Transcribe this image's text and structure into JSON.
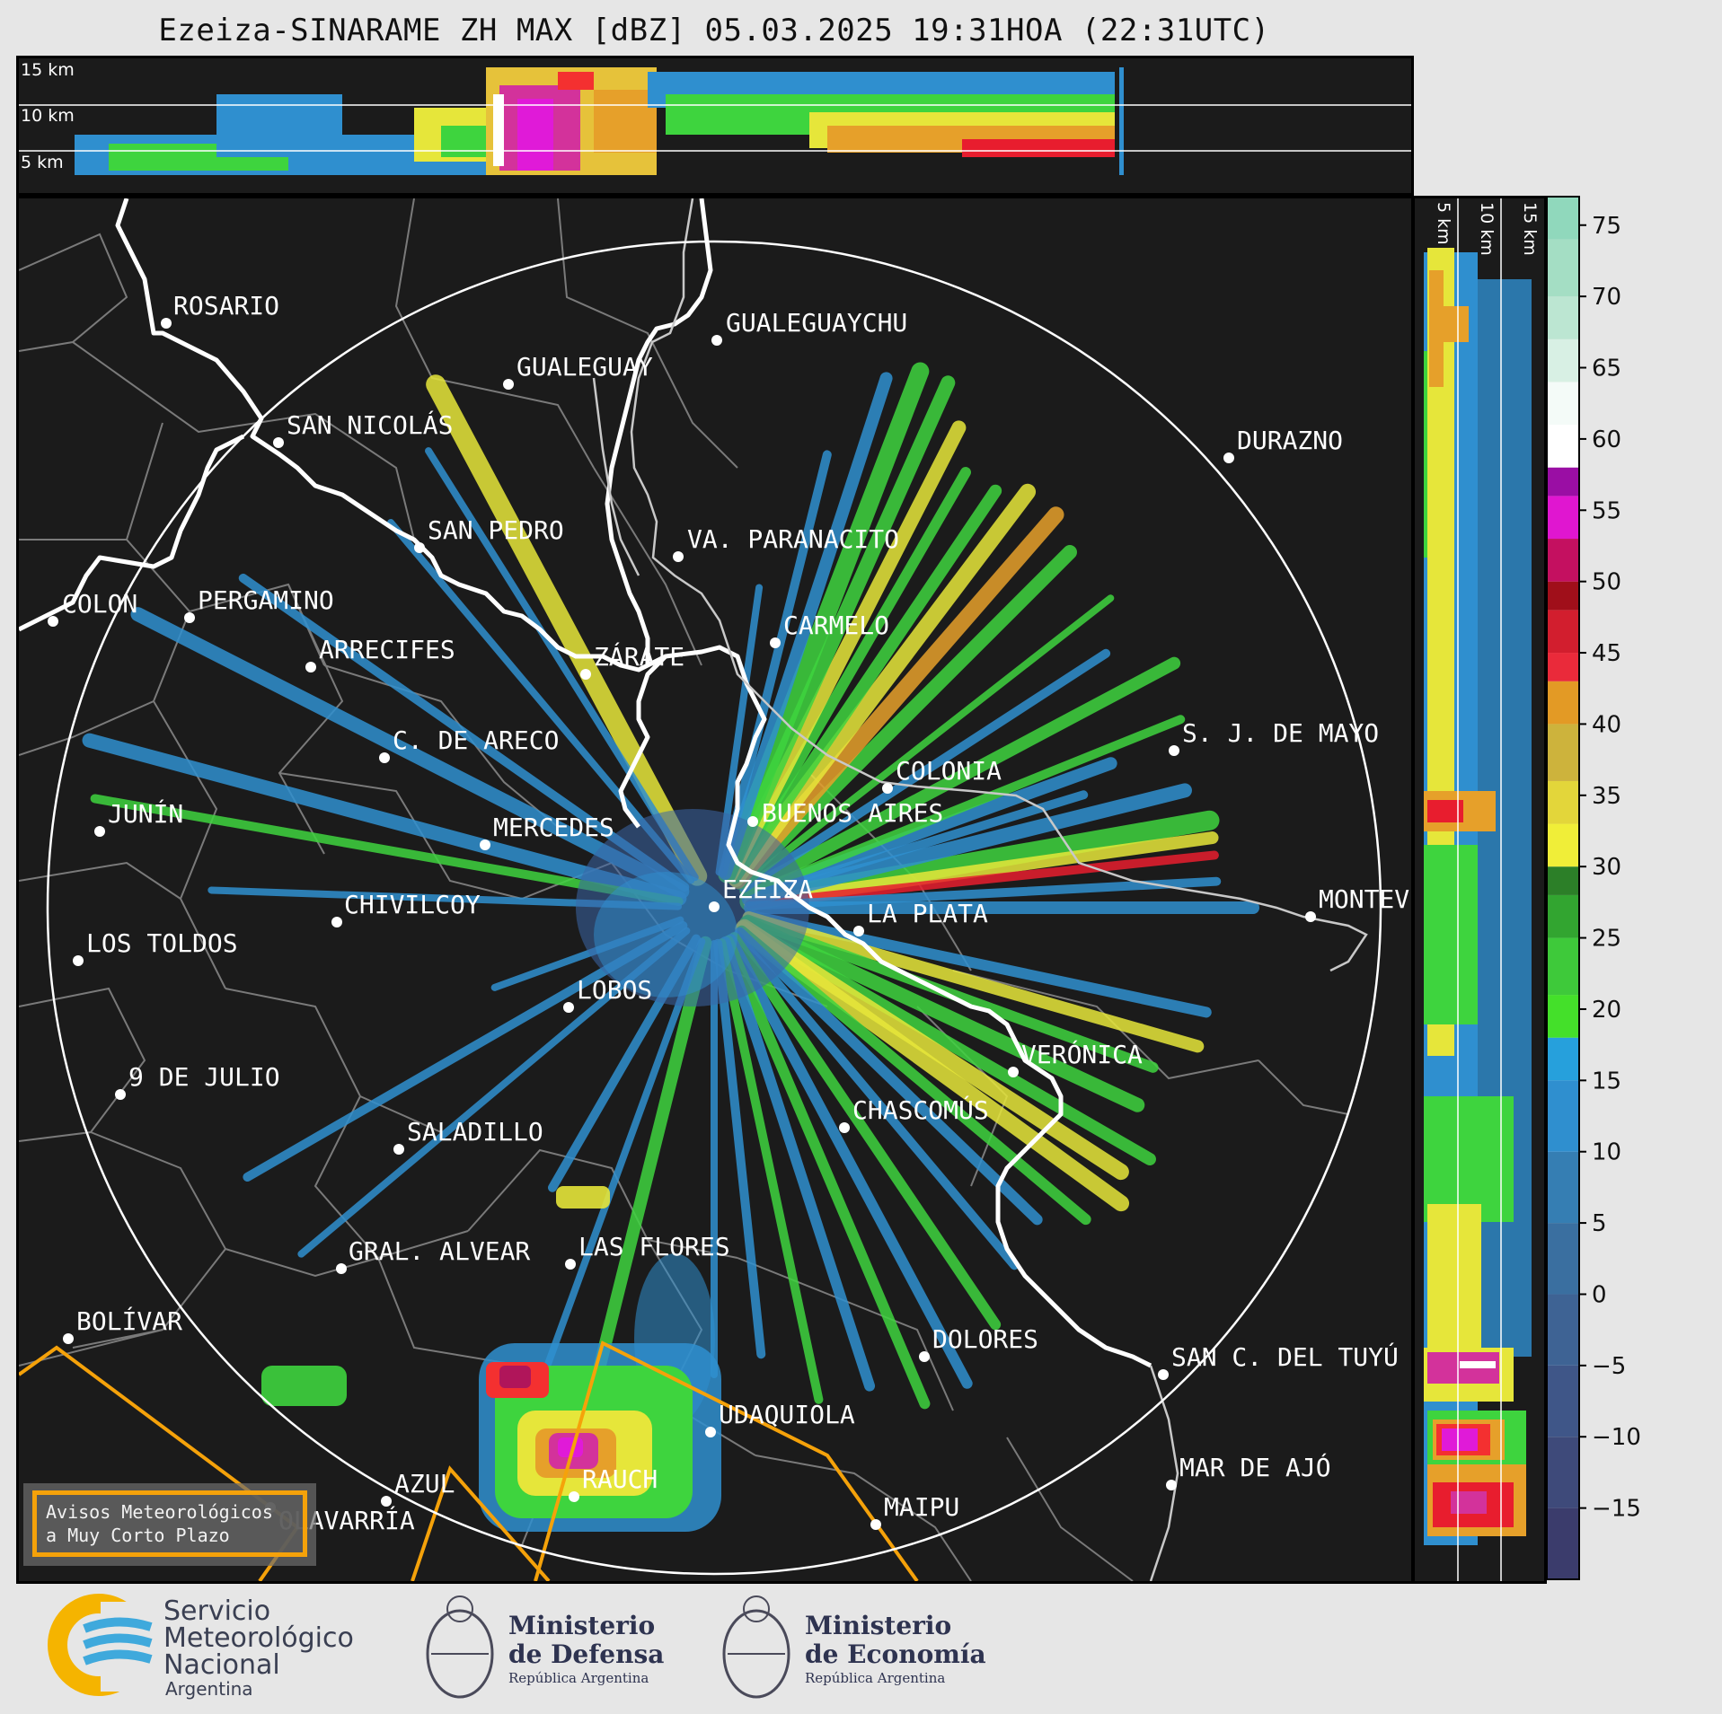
{
  "title": "Ezeiza-SINARAME ZH MAX [dBZ] 05.03.2025 19:31HOA (22:31UTC)",
  "top_panel": {
    "height_labels": [
      "15 km",
      "10 km",
      "5 km"
    ]
  },
  "side_panel": {
    "height_labels": [
      "5 km",
      "10 km",
      "15 km"
    ]
  },
  "colorbar": {
    "unit": "dBZ",
    "tick_labels": [
      "75",
      "70",
      "65",
      "60",
      "55",
      "50",
      "45",
      "40",
      "35",
      "30",
      "25",
      "20",
      "15",
      "10",
      "5",
      "0",
      "−5",
      "−10",
      "−15"
    ],
    "ticks": [
      75,
      70,
      65,
      60,
      55,
      50,
      45,
      40,
      35,
      30,
      25,
      20,
      15,
      10,
      5,
      0,
      -5,
      -10,
      -15
    ],
    "range": [
      -20,
      77
    ]
  },
  "cities": [
    {
      "label": "ROSARIO",
      "dot": [
        182,
        357
      ],
      "text": [
        190,
        347
      ]
    },
    {
      "label": "GUALEGUAYCHU",
      "dot": [
        795,
        376
      ],
      "text": [
        805,
        366
      ]
    },
    {
      "label": "GUALEGUAY",
      "dot": [
        563,
        425
      ],
      "text": [
        572,
        415
      ]
    },
    {
      "label": "SAN NICOLÁS",
      "dot": [
        307,
        490
      ],
      "text": [
        316,
        480
      ]
    },
    {
      "label": "DURAZNO",
      "dot": [
        1365,
        507
      ],
      "text": [
        1374,
        497
      ]
    },
    {
      "label": "SAN PEDRO",
      "dot": [
        464,
        607
      ],
      "text": [
        473,
        597
      ]
    },
    {
      "label": "VA. PARANACITO",
      "dot": [
        752,
        617
      ],
      "text": [
        762,
        607
      ]
    },
    {
      "label": "COLON",
      "dot": [
        56,
        689
      ],
      "text": [
        66,
        679
      ]
    },
    {
      "label": "PERGAMINO",
      "dot": [
        208,
        685
      ],
      "text": [
        217,
        675
      ]
    },
    {
      "label": "CARMELO",
      "dot": [
        860,
        713
      ],
      "text": [
        869,
        703
      ]
    },
    {
      "label": "ARRECIFES",
      "dot": [
        343,
        740
      ],
      "text": [
        352,
        730
      ]
    },
    {
      "label": "ZÁRATE",
      "dot": [
        649,
        748
      ],
      "text": [
        658,
        738
      ]
    },
    {
      "label": "C. DE ARECO",
      "dot": [
        425,
        841
      ],
      "text": [
        434,
        831
      ]
    },
    {
      "label": "S. J. DE MAYO",
      "dot": [
        1304,
        833
      ],
      "text": [
        1313,
        823
      ]
    },
    {
      "label": "COLONIA",
      "dot": [
        985,
        875
      ],
      "text": [
        994,
        865
      ]
    },
    {
      "label": "JUNÍN",
      "dot": [
        108,
        923
      ],
      "text": [
        117,
        913
      ]
    },
    {
      "label": "BUENOS AIRES",
      "dot": [
        835,
        912
      ],
      "text": [
        845,
        912
      ]
    },
    {
      "label": "MERCEDES",
      "dot": [
        537,
        938
      ],
      "text": [
        546,
        928
      ]
    },
    {
      "label": "EZEIZA",
      "dot": [
        792,
        1007
      ],
      "text": [
        801,
        997
      ]
    },
    {
      "label": "MONTEVIDEO",
      "dot": [
        1456,
        1018
      ],
      "text": [
        1465,
        1008
      ]
    },
    {
      "label": "CHIVILCOY",
      "dot": [
        372,
        1024
      ],
      "text": [
        380,
        1014
      ]
    },
    {
      "label": "LA PLATA",
      "dot": [
        953,
        1034
      ],
      "text": [
        962,
        1024
      ]
    },
    {
      "label": "LOS TOLDOS",
      "dot": [
        84,
        1067
      ],
      "text": [
        93,
        1057
      ]
    },
    {
      "label": "LOBOS",
      "dot": [
        630,
        1119
      ],
      "text": [
        639,
        1109
      ]
    },
    {
      "label": "VERÓNICA",
      "dot": [
        1125,
        1191
      ],
      "text": [
        1134,
        1181
      ]
    },
    {
      "label": "9 DE JULIO",
      "dot": [
        131,
        1216
      ],
      "text": [
        140,
        1206
      ]
    },
    {
      "label": "CHASCOMÚS",
      "dot": [
        937,
        1253
      ],
      "text": [
        946,
        1243
      ]
    },
    {
      "label": "SALADILLO",
      "dot": [
        441,
        1277
      ],
      "text": [
        450,
        1267
      ]
    },
    {
      "label": "GRAL. ALVEAR",
      "dot": [
        377,
        1410
      ],
      "text": [
        385,
        1400
      ]
    },
    {
      "label": "LAS FLORES",
      "dot": [
        632,
        1405
      ],
      "text": [
        641,
        1395
      ]
    },
    {
      "label": "BOLÍVAR",
      "dot": [
        73,
        1488
      ],
      "text": [
        82,
        1478
      ]
    },
    {
      "label": "DOLORES",
      "dot": [
        1026,
        1508
      ],
      "text": [
        1035,
        1498
      ]
    },
    {
      "label": "SAN C. DEL TUYÚ",
      "dot": [
        1292,
        1528
      ],
      "text": [
        1301,
        1518
      ]
    },
    {
      "label": "UDAQUIOLA",
      "dot": [
        788,
        1592
      ],
      "text": [
        797,
        1582
      ]
    },
    {
      "label": "MAR DE AJÓ",
      "dot": [
        1301,
        1651
      ],
      "text": [
        1310,
        1641
      ]
    },
    {
      "label": "AZUL",
      "dot": [
        427,
        1669
      ],
      "text": [
        436,
        1659
      ]
    },
    {
      "label": "RAUCH",
      "dot": [
        636,
        1664
      ],
      "text": [
        645,
        1654
      ]
    },
    {
      "label": "OLAVARRÍA",
      "dot": [
        298,
        1676
      ],
      "text": [
        307,
        1700
      ]
    },
    {
      "label": "MAIPU",
      "dot": [
        972,
        1695
      ],
      "text": [
        981,
        1685
      ]
    }
  ],
  "warning_box": {
    "line1": "Avisos Meteorológicos",
    "line2": "a Muy Corto Plazo"
  },
  "logos": {
    "smn": [
      "Servicio",
      "Meteorológico",
      "Nacional",
      "Argentina"
    ],
    "defensa": [
      "Ministerio",
      "de Defensa",
      "República Argentina"
    ],
    "economia": [
      "Ministerio",
      "de Economía",
      "República Argentina"
    ]
  },
  "colors": {
    "background": "#1b1b1b",
    "range_ring": "#ffffff",
    "warning_polygon": "#f5a20a",
    "coastline": "#ffffff",
    "borders": "#8a8a8a"
  }
}
